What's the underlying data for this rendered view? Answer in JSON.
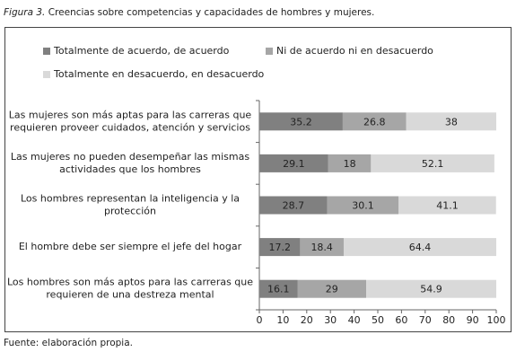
{
  "figure_label": "Figura 3.",
  "source": "Fuente: elaboración propia.",
  "chart_data": {
    "type": "stacked-bar-horizontal",
    "title": "Creencias sobre competencias y capacidades de hombres y mujeres.",
    "categories": [
      [
        "Las mujeres son más aptas para las carreras que",
        "requieren proveer cuidados, atención y servicios"
      ],
      [
        "Las mujeres no pueden desempeñar las mismas",
        "actividades que los hombres"
      ],
      [
        "Los hombres representan la inteligencia y la",
        "protección"
      ],
      [
        "El hombre debe ser siempre el jefe del hogar"
      ],
      [
        "Los hombres son más aptos para las carreras que",
        "requieren de una destreza mental"
      ]
    ],
    "series": [
      {
        "name": "Totalmente de acuerdo, de acuerdo",
        "color": "#808080",
        "values": [
          35.2,
          29.1,
          28.7,
          17.2,
          16.1
        ]
      },
      {
        "name": "Ni de acuerdo ni en desacuerdo",
        "color": "#a6a6a6",
        "values": [
          26.8,
          18,
          30.1,
          18.4,
          29
        ]
      },
      {
        "name": "Totalmente en desacuerdo, en desacuerdo",
        "color": "#d9d9d9",
        "values": [
          38,
          52.1,
          41.1,
          64.4,
          54.9
        ]
      }
    ],
    "xlim": [
      0,
      100
    ],
    "xticks": [
      0,
      10,
      20,
      30,
      40,
      50,
      60,
      70,
      80,
      90,
      100
    ],
    "legend": "top"
  }
}
